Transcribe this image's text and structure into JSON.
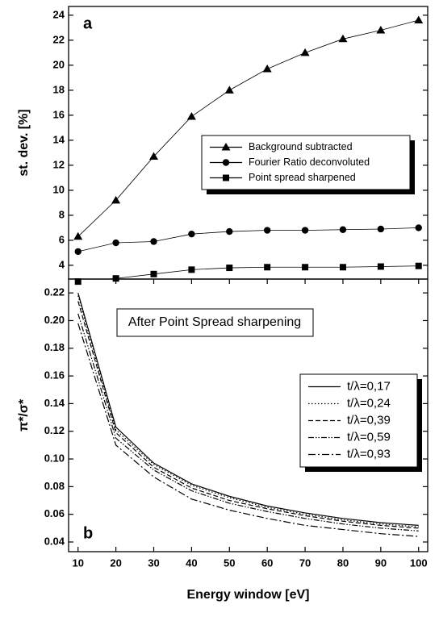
{
  "chart_data": [
    {
      "type": "line",
      "panel_label": "a",
      "y_label": "st. dev. [%]",
      "x": [
        10,
        20,
        30,
        40,
        50,
        60,
        70,
        80,
        90,
        100
      ],
      "xlim": [
        7.5,
        102.4
      ],
      "ylim": [
        2.9,
        24.7
      ],
      "yticks": [
        4,
        6,
        8,
        10,
        12,
        14,
        16,
        18,
        20,
        22,
        24
      ],
      "legend": "center right",
      "series": [
        {
          "name": "Background subtracted",
          "color": "#000000",
          "marker": "triangle",
          "dash": "solid",
          "values": [
            6.3,
            9.2,
            12.7,
            15.9,
            18.0,
            19.7,
            21.0,
            22.1,
            22.8,
            23.6
          ]
        },
        {
          "name": "Fourier Ratio deconvoluted",
          "color": "#000000",
          "marker": "circle",
          "dash": "solid",
          "values": [
            5.1,
            5.8,
            5.9,
            6.5,
            6.7,
            6.8,
            6.8,
            6.85,
            6.9,
            7.0
          ]
        },
        {
          "name": "Point spread sharpened",
          "color": "#000000",
          "marker": "square",
          "dash": "solid",
          "values": [
            2.7,
            2.95,
            3.3,
            3.65,
            3.8,
            3.85,
            3.85,
            3.85,
            3.9,
            3.95
          ]
        }
      ]
    },
    {
      "type": "line",
      "panel_label": "b",
      "y_label": "π*/σ*",
      "x_label": "Energy window [eV]",
      "annotation": "After Point Spread sharpening",
      "x": [
        10,
        20,
        30,
        40,
        50,
        60,
        70,
        80,
        90,
        100
      ],
      "xlim": [
        7.5,
        102.4
      ],
      "ylim": [
        0.033,
        0.23
      ],
      "xticks": [
        10,
        20,
        30,
        40,
        50,
        60,
        70,
        80,
        90,
        100
      ],
      "yticks": [
        0.04,
        0.06,
        0.08,
        {
          "value": 0.1,
          "label": "0.10"
        },
        0.12,
        0.14,
        0.16,
        0.18,
        {
          "value": 0.2,
          "label": "0.20"
        },
        0.22
      ],
      "legend": "center right",
      "series": [
        {
          "name": "t/λ=0,17",
          "color": "#000000",
          "dash": "solid",
          "values": [
            0.22,
            0.123,
            0.097,
            0.082,
            0.073,
            0.066,
            0.061,
            0.057,
            0.054,
            0.052
          ]
        },
        {
          "name": "t/λ=0,24",
          "color": "#000000",
          "dash": "dotted",
          "values": [
            0.218,
            0.121,
            0.096,
            0.081,
            0.072,
            0.065,
            0.06,
            0.056,
            0.053,
            0.051
          ]
        },
        {
          "name": "t/λ=0,39",
          "color": "#000000",
          "dash": "dashed",
          "values": [
            0.214,
            0.119,
            0.094,
            0.079,
            0.07,
            0.064,
            0.059,
            0.055,
            0.052,
            0.05
          ]
        },
        {
          "name": "t/λ=0,59",
          "color": "#000000",
          "dash": "dash-dot-dot",
          "values": [
            0.205,
            0.115,
            0.092,
            0.077,
            0.068,
            0.062,
            0.057,
            0.053,
            0.05,
            0.048
          ]
        },
        {
          "name": "t/λ=0,93",
          "color": "#000000",
          "dash": "dash-dot",
          "values": [
            0.198,
            0.11,
            0.087,
            0.071,
            0.063,
            0.057,
            0.052,
            0.049,
            0.046,
            0.044
          ]
        }
      ]
    }
  ]
}
